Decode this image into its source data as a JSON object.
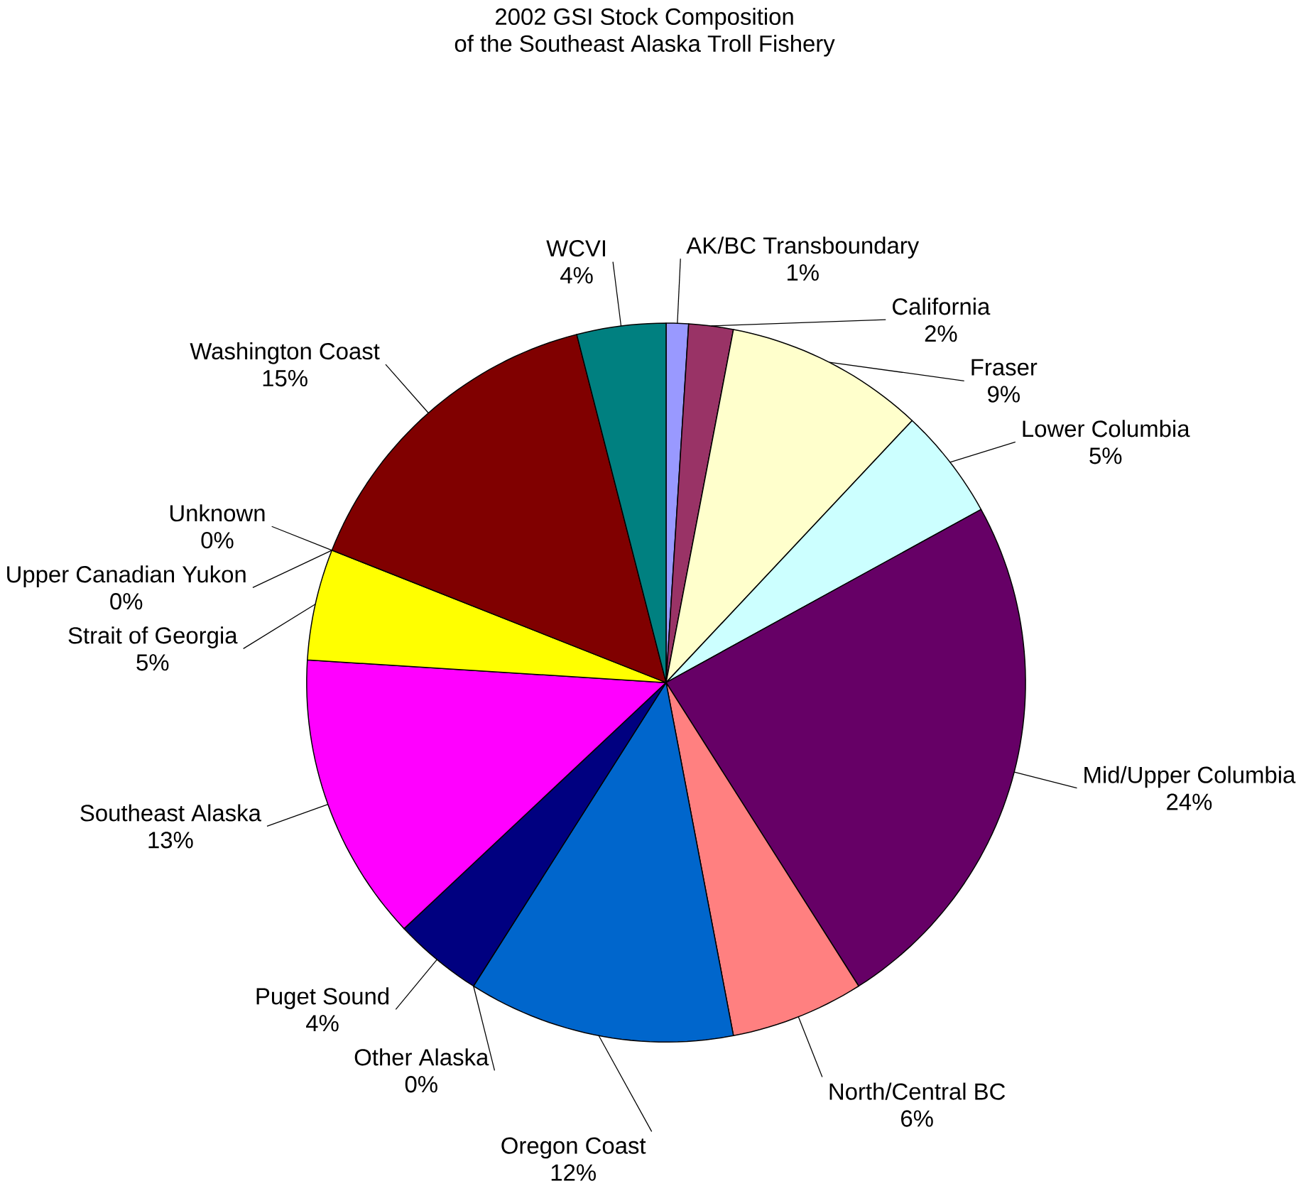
{
  "chart_data": {
    "type": "pie",
    "title": "2002 GSI Stock Composition",
    "subtitle": "of the Southeast Alaska Troll Fishery",
    "categories": [
      "AK/BC Transboundary",
      "California",
      "Fraser",
      "Lower Columbia",
      "Mid/Upper Columbia",
      "North/Central BC",
      "Oregon Coast",
      "Other Alaska",
      "Puget Sound",
      "Southeast Alaska",
      "Strait of Georgia",
      "Unknown",
      "Upper Canadian Yukon",
      "Washington Coast",
      "WCVI"
    ],
    "values": [
      1,
      2,
      9,
      5,
      24,
      6,
      12,
      0,
      4,
      13,
      5,
      0,
      0,
      15,
      4
    ],
    "value_labels": [
      "1%",
      "2%",
      "9%",
      "5%",
      "24%",
      "6%",
      "12%",
      "0%",
      "4%",
      "13%",
      "5%",
      "0%",
      "0%",
      "15%",
      "4%"
    ],
    "colors": [
      "#9999ff",
      "#993366",
      "#ffffcc",
      "#ccffff",
      "#660066",
      "#ff8080",
      "#0066cc",
      "#ccccff",
      "#000080",
      "#ff00ff",
      "#ffff00",
      "#00ffff",
      "#800080",
      "#800000",
      "#008080"
    ]
  }
}
